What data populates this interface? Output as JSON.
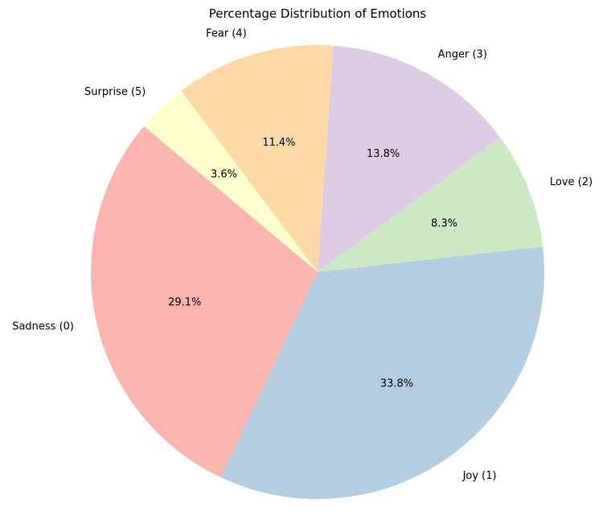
{
  "chart_data": {
    "type": "pie",
    "title": "Percentage Distribution of Emotions",
    "start_angle": 140,
    "direction": "counterclockwise",
    "categories": [
      "Sadness (0)",
      "Joy (1)",
      "Love (2)",
      "Anger (3)",
      "Fear (4)",
      "Surprise (5)"
    ],
    "values": [
      29.1,
      33.8,
      8.3,
      13.8,
      11.4,
      3.6
    ],
    "labels_pct": [
      "29.1%",
      "33.8%",
      "8.3%",
      "13.8%",
      "11.4%",
      "3.6%"
    ],
    "colors": [
      "#fbb4ae",
      "#b3cde3",
      "#ccebc5",
      "#decbe4",
      "#fed9a6",
      "#ffffcc"
    ],
    "center": [
      395,
      338
    ],
    "radius": 282
  }
}
